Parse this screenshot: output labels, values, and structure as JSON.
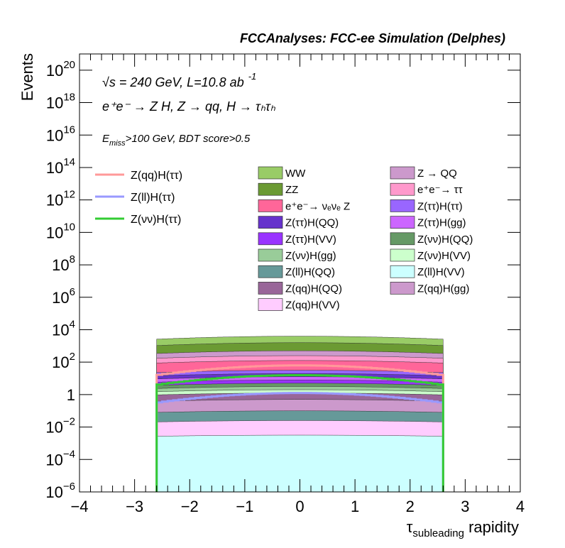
{
  "chart_data": {
    "type": "area",
    "title": "FCCAnalyses: FCC-ee Simulation (Delphes)",
    "xlabel": {
      "main": "τ",
      "sub": "subleading",
      "rest": " rapidity"
    },
    "ylabel": "Events",
    "xlim": [
      -4,
      4
    ],
    "ylim_log10": [
      -6,
      21
    ],
    "y_scale": "log",
    "grid": false,
    "x_ticks": [
      "−4",
      "−3",
      "−2",
      "−1",
      "0",
      "1",
      "2",
      "3",
      "4"
    ],
    "x_tick_values": [
      -4,
      -3,
      -2,
      -1,
      0,
      1,
      2,
      3,
      4
    ],
    "y_ticks": [
      {
        "exp": -6,
        "base": "10",
        "sup": "−6"
      },
      {
        "exp": -4,
        "base": "10",
        "sup": "−4"
      },
      {
        "exp": -2,
        "base": "10",
        "sup": "−2"
      },
      {
        "exp": 0,
        "base": "1",
        "sup": ""
      },
      {
        "exp": 2,
        "base": "10",
        "sup": "2"
      },
      {
        "exp": 4,
        "base": "10",
        "sup": "4"
      },
      {
        "exp": 6,
        "base": "10",
        "sup": "6"
      },
      {
        "exp": 8,
        "base": "10",
        "sup": "8"
      },
      {
        "exp": 10,
        "base": "10",
        "sup": "10"
      },
      {
        "exp": 12,
        "base": "10",
        "sup": "12"
      },
      {
        "exp": 14,
        "base": "10",
        "sup": "14"
      },
      {
        "exp": 16,
        "base": "10",
        "sup": "16"
      },
      {
        "exp": 18,
        "base": "10",
        "sup": "18"
      },
      {
        "exp": 20,
        "base": "10",
        "sup": "20"
      }
    ],
    "annotations": {
      "energy": {
        "sqrt": "√",
        "s": "s",
        "rest": " = 240 GeV, L=10.8 ab",
        "sup": "-1"
      },
      "process": "e⁺e⁻ → Z H, Z → qq, H → τₕτₕ",
      "cut": {
        "E": "E",
        "sub": "miss",
        "rest": ">100 GeV, BDT score>0.5"
      }
    },
    "x_range_filled": [
      -2.6,
      2.6
    ],
    "stack_peaks_log10": [
      {
        "name": "WW",
        "color": "#99cc66",
        "peak": 3.6
      },
      {
        "name": "ZZ",
        "color": "#6b9a33",
        "peak": 3.2
      },
      {
        "name": "Z → QQ",
        "color": "#cc99cc",
        "peak": 2.7
      },
      {
        "name": "e⁺e⁻→ ττ",
        "color": "#ff99cc",
        "peak": 2.4
      },
      {
        "name": "e⁺e⁻→ νₑνₑ Z",
        "color": "#ff6699",
        "peak": 2.1
      },
      {
        "name": "Z(ττ)H(ττ)",
        "color": "#9966ff",
        "peak": 1.5
      },
      {
        "name": "Z(ττ)H(QQ)",
        "color": "#6633cc",
        "peak": 1.3
      },
      {
        "name": "Z(ττ)H(gg)",
        "color": "#cc66ff",
        "peak": 1.1
      },
      {
        "name": "Z(ττ)H(VV)",
        "color": "#9933ff",
        "peak": 0.9
      },
      {
        "name": "Z(νν)H(QQ)",
        "color": "#669966",
        "peak": 0.7
      },
      {
        "name": "Z(νν)H(gg)",
        "color": "#99cc99",
        "peak": 0.5
      },
      {
        "name": "Z(νν)H(VV)",
        "color": "#ccffcc",
        "peak": 0.3
      },
      {
        "name": "Z(qq)H(QQ)",
        "color": "#996699",
        "peak": 0.1
      },
      {
        "name": "Z(qq)H(gg)",
        "color": "#cc99cc",
        "peak": -0.3
      },
      {
        "name": "Z(ll)H(QQ)",
        "color": "#669999",
        "peak": -1.0
      },
      {
        "name": "Z(qq)H(VV)",
        "color": "#ffccff",
        "peak": -1.6
      },
      {
        "name": "Z(ll)H(VV)",
        "color": "#ccffff",
        "peak": -2.5
      }
    ],
    "signal_lines": [
      {
        "name": "Z(qq)H(ττ)",
        "color": "#ff9999",
        "peak_log10": 1.8,
        "x_range": [
          -2.6,
          2.6
        ]
      },
      {
        "name": "Z(ll)H(ττ)",
        "color": "#9999ff",
        "peak_log10": 0.1,
        "x_range": [
          -2.6,
          2.6
        ]
      },
      {
        "name": "Z(νν)H(ττ)",
        "color": "#33cc33",
        "peak_log10": 1.2,
        "x_range": [
          -2.6,
          2.6
        ]
      }
    ],
    "legend_signals": [
      {
        "name": "Z(qq)H(ττ)",
        "color": "#ff9999"
      },
      {
        "name": "Z(ll)H(ττ)",
        "color": "#9999ff"
      },
      {
        "name": "Z(νν)H(ττ)",
        "color": "#33cc33"
      }
    ],
    "legend_backgrounds_col1": [
      {
        "name": "WW",
        "color": "#99cc66"
      },
      {
        "name": "ZZ",
        "color": "#6b9a33"
      },
      {
        "name": "e⁺e⁻→ νₑνₑ Z",
        "color": "#ff6699"
      },
      {
        "name": "Z(ττ)H(QQ)",
        "color": "#6633cc"
      },
      {
        "name": "Z(ττ)H(VV)",
        "color": "#9933ff"
      },
      {
        "name": "Z(νν)H(gg)",
        "color": "#99cc99"
      },
      {
        "name": "Z(ll)H(QQ)",
        "color": "#669999"
      },
      {
        "name": "Z(qq)H(QQ)",
        "color": "#996699"
      },
      {
        "name": "Z(qq)H(VV)",
        "color": "#ffccff"
      }
    ],
    "legend_backgrounds_col2": [
      {
        "name": "Z → QQ",
        "color": "#cc99cc"
      },
      {
        "name": "e⁺e⁻→ ττ",
        "color": "#ff99cc"
      },
      {
        "name": "Z(ττ)H(ττ)",
        "color": "#9966ff"
      },
      {
        "name": "Z(ττ)H(gg)",
        "color": "#cc66ff"
      },
      {
        "name": "Z(νν)H(QQ)",
        "color": "#669966"
      },
      {
        "name": "Z(νν)H(VV)",
        "color": "#ccffcc"
      },
      {
        "name": "Z(ll)H(VV)",
        "color": "#ccffff"
      },
      {
        "name": "Z(qq)H(gg)",
        "color": "#cc99cc"
      }
    ]
  }
}
